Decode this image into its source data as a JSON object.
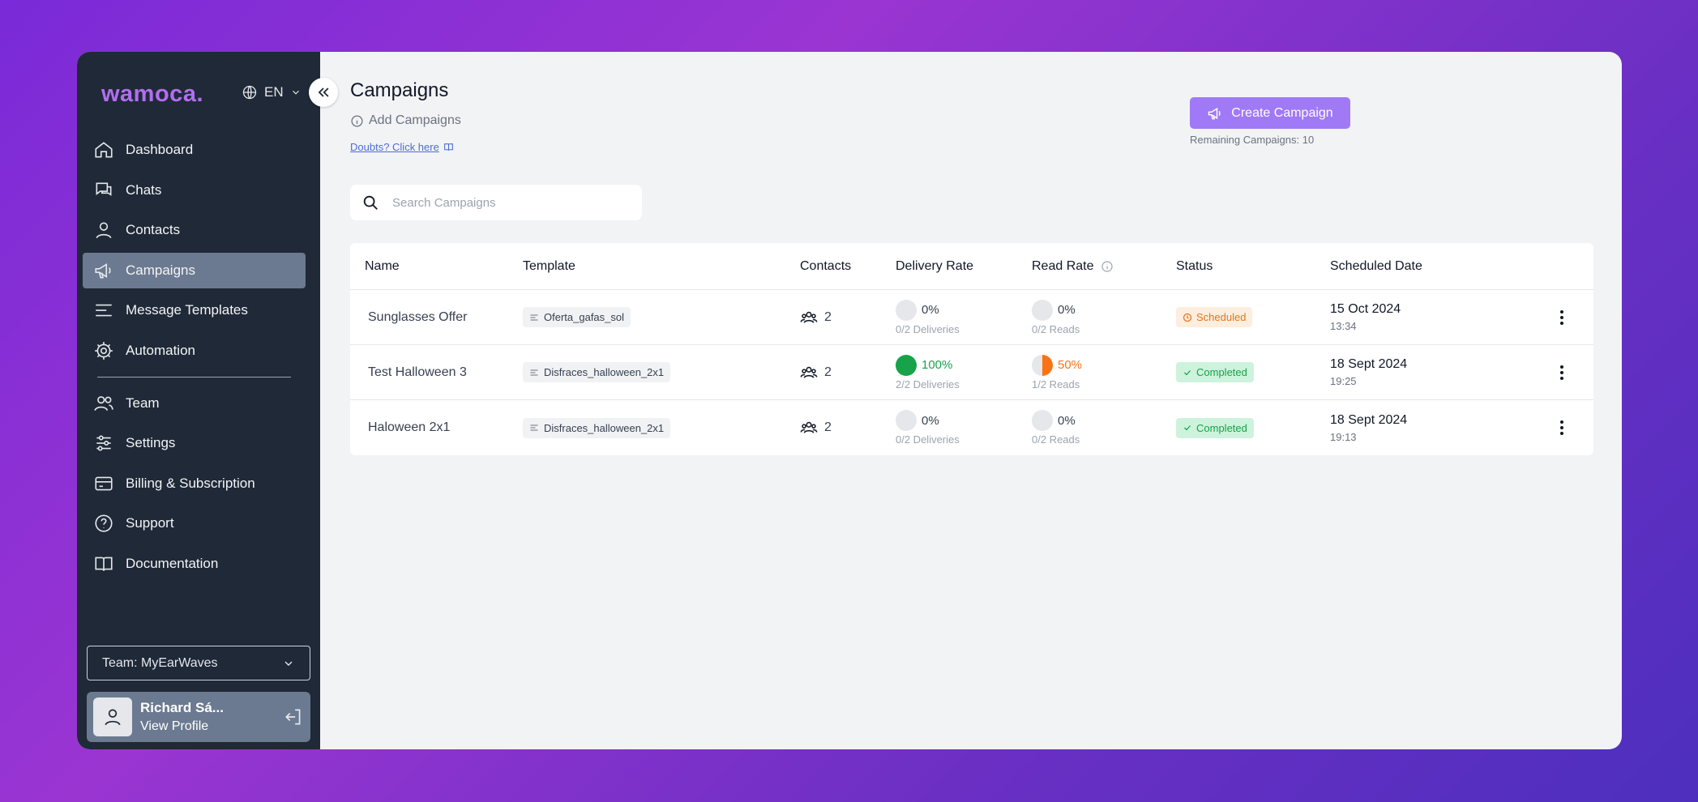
{
  "sidebar": {
    "logo": "wamoca.",
    "language": "EN",
    "nav_top": [
      {
        "label": "Dashboard",
        "icon": "home-icon"
      },
      {
        "label": "Chats",
        "icon": "chat-icon"
      },
      {
        "label": "Contacts",
        "icon": "user-icon"
      },
      {
        "label": "Campaigns",
        "icon": "megaphone-icon",
        "active": true
      },
      {
        "label": "Message Templates",
        "icon": "template-icon"
      },
      {
        "label": "Automation",
        "icon": "automation-icon"
      }
    ],
    "nav_bottom": [
      {
        "label": "Team",
        "icon": "team-icon"
      },
      {
        "label": "Settings",
        "icon": "settings-icon"
      },
      {
        "label": "Billing & Subscription",
        "icon": "card-icon"
      },
      {
        "label": "Support",
        "icon": "help-icon"
      },
      {
        "label": "Documentation",
        "icon": "book-icon"
      }
    ],
    "team_select": "Team: MyEarWaves",
    "profile": {
      "name": "Richard Sá...",
      "link": "View Profile"
    }
  },
  "header": {
    "title": "Campaigns",
    "subtitle": "Add Campaigns",
    "doubts_link": "Doubts? Click here",
    "create_button": "Create Campaign",
    "remaining": "Remaining Campaigns: 10"
  },
  "search": {
    "placeholder": "Search Campaigns"
  },
  "table": {
    "columns": {
      "name": "Name",
      "template": "Template",
      "contacts": "Contacts",
      "delivery": "Delivery Rate",
      "read": "Read Rate",
      "status": "Status",
      "date": "Scheduled Date"
    },
    "rows": [
      {
        "name": "Sunglasses Offer",
        "template": "Oferta_gafas_sol",
        "contacts": "2",
        "delivery_pct": "0%",
        "delivery_sub": "0/2 Deliveries",
        "delivery_value": 0,
        "read_pct": "0%",
        "read_sub": "0/2 Reads",
        "read_value": 0,
        "status": "Scheduled",
        "status_type": "scheduled",
        "date": "15 Oct 2024",
        "time": "13:34"
      },
      {
        "name": "Test Halloween 3",
        "template": "Disfraces_halloween_2x1",
        "contacts": "2",
        "delivery_pct": "100%",
        "delivery_sub": "2/2 Deliveries",
        "delivery_value": 100,
        "read_pct": "50%",
        "read_sub": "1/2 Reads",
        "read_value": 50,
        "status": "Completed",
        "status_type": "completed",
        "date": "18 Sept 2024",
        "time": "19:25"
      },
      {
        "name": "Haloween 2x1",
        "template": "Disfraces_halloween_2x1",
        "contacts": "2",
        "delivery_pct": "0%",
        "delivery_sub": "0/2 Deliveries",
        "delivery_value": 0,
        "read_pct": "0%",
        "read_sub": "0/2 Reads",
        "read_value": 0,
        "status": "Completed",
        "status_type": "completed",
        "date": "18 Sept 2024",
        "time": "19:13"
      }
    ]
  },
  "colors": {
    "accent": "#a07af6",
    "sidebar_bg": "#1f2937",
    "success": "#16a34a",
    "warning": "#f97316",
    "empty": "#e5e7eb"
  }
}
